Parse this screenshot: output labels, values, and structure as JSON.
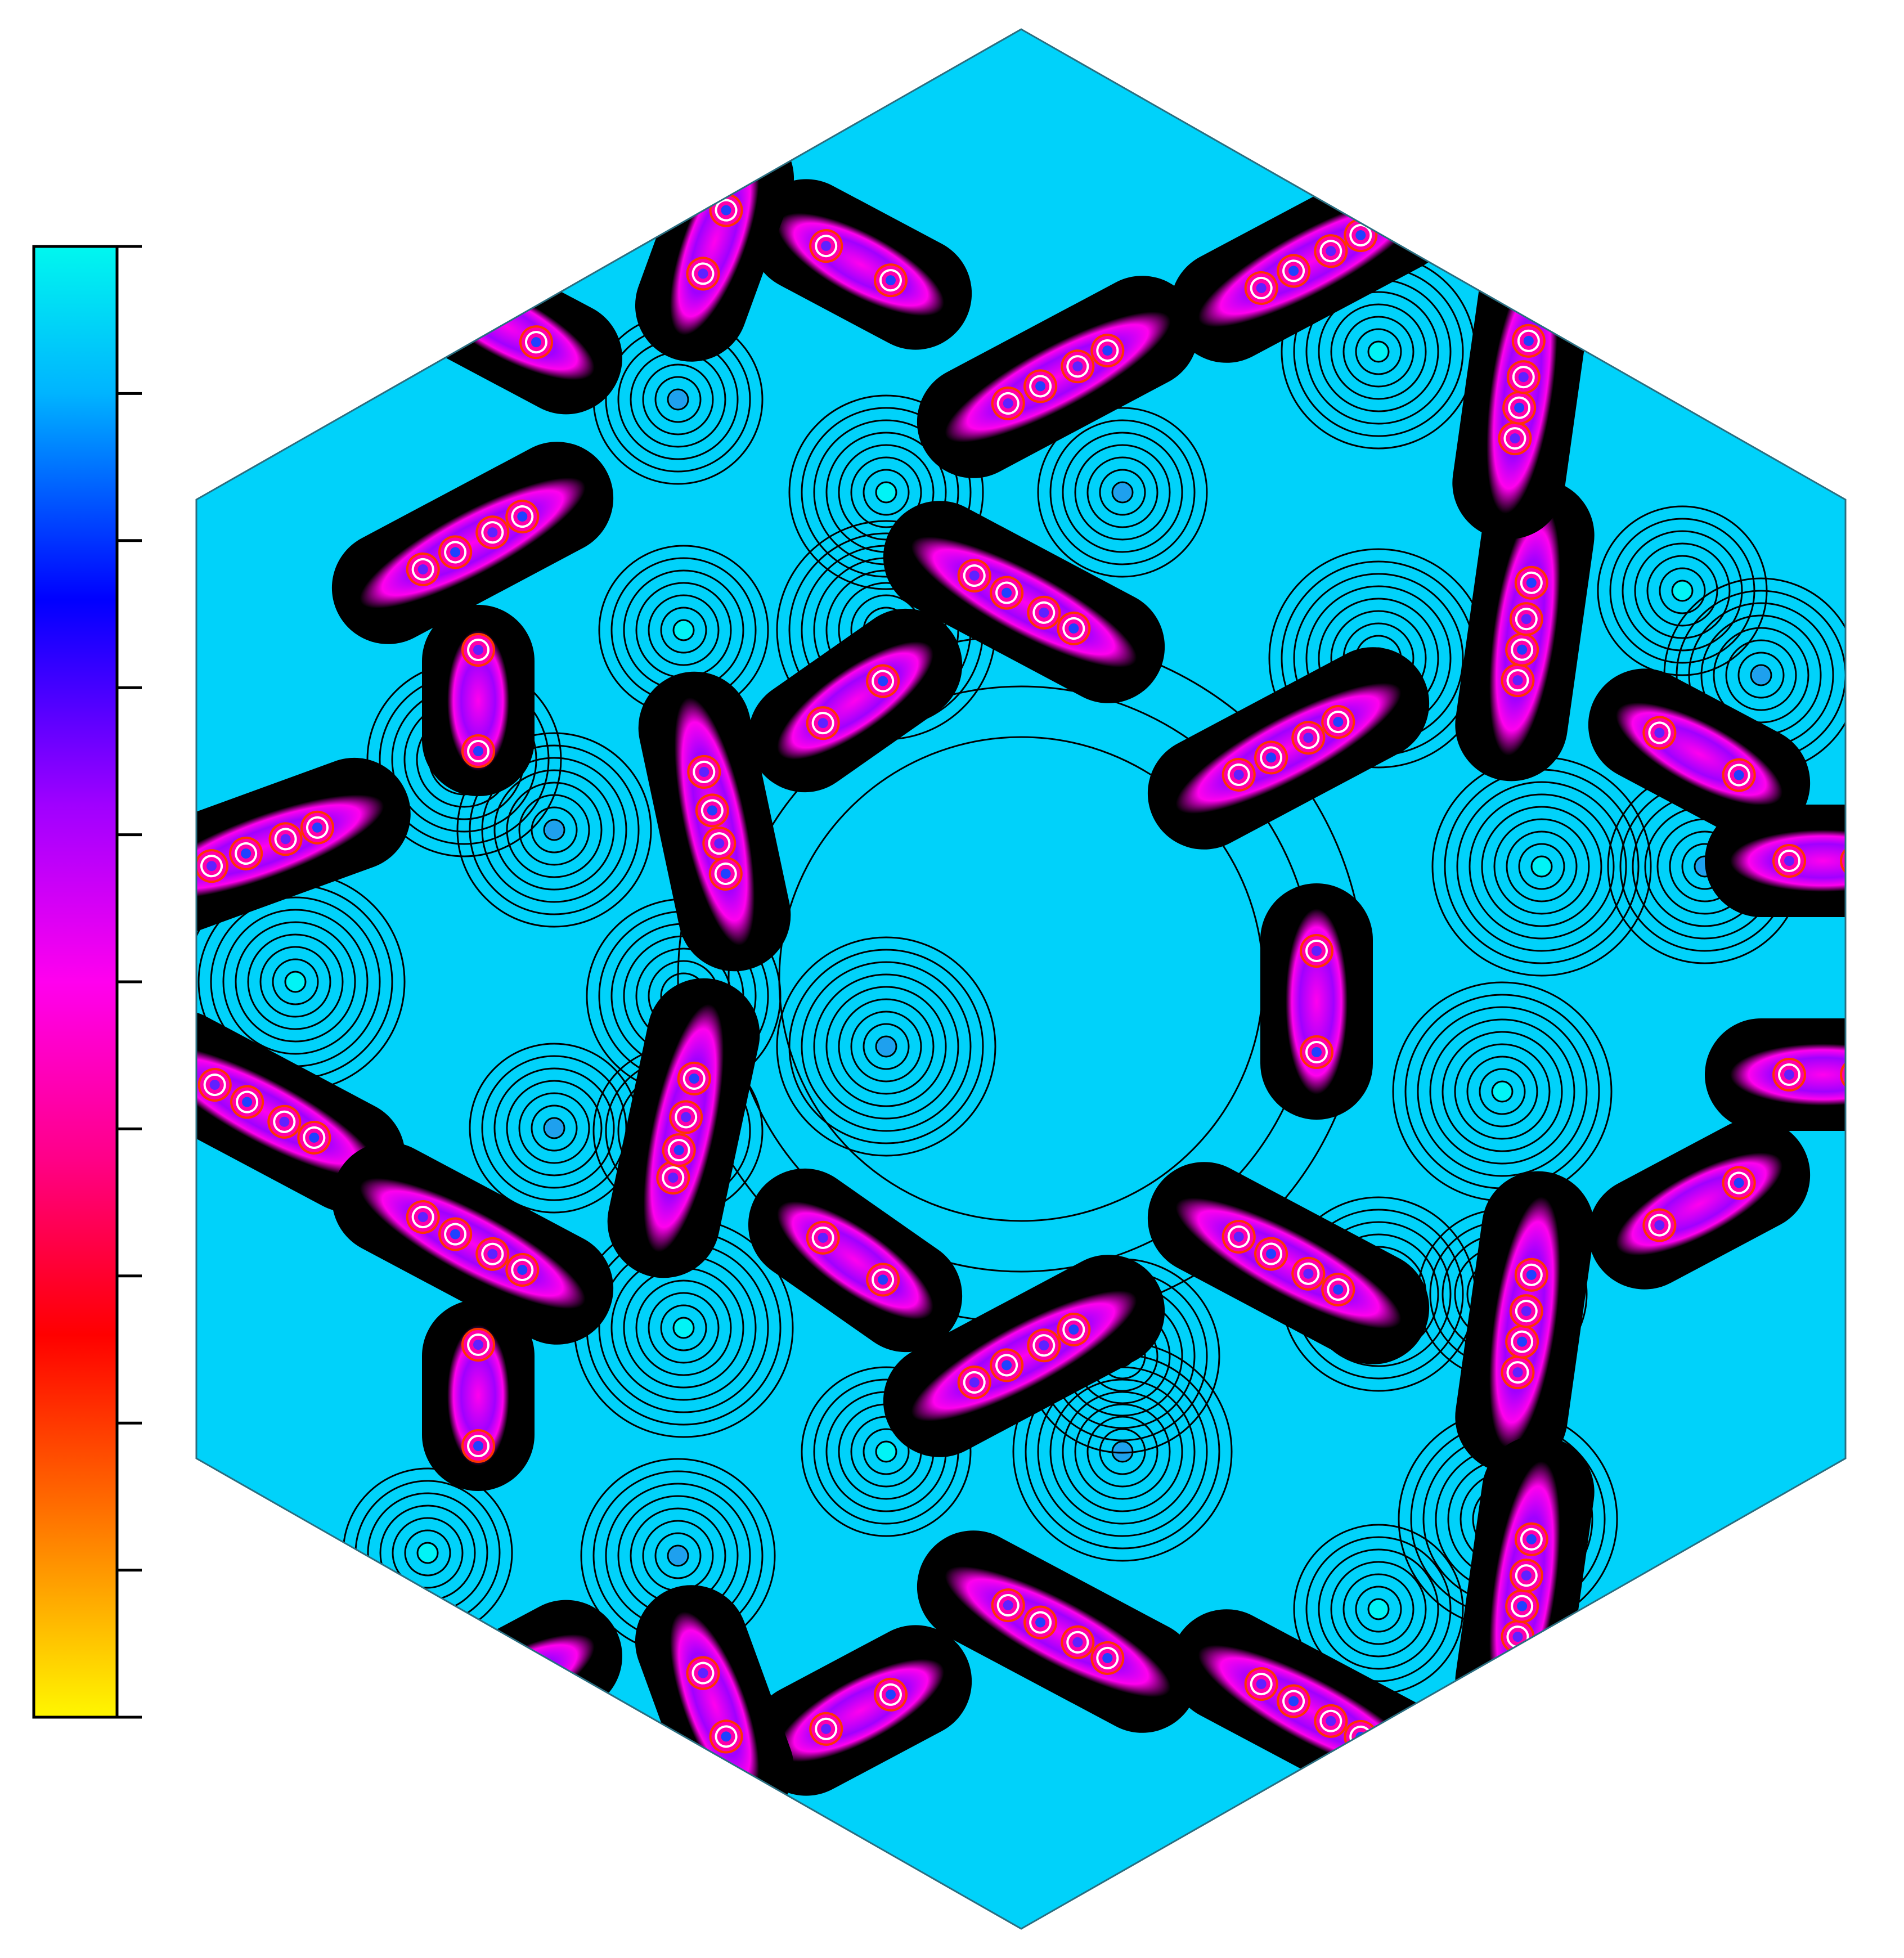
{
  "figure": {
    "kind": "contour-density-map",
    "shape": "hexagon",
    "colors": {
      "background_field": "#00d2fa",
      "contour_line": "#000000",
      "hexagon_border": "#2a6e80"
    }
  },
  "colorbar": {
    "tick_count": 11,
    "tick_labels": [],
    "gradient_stops": [
      {
        "offset": 0.0,
        "color": "#00f7ef"
      },
      {
        "offset": 0.1,
        "color": "#00b4ff"
      },
      {
        "offset": 0.24,
        "color": "#0000ff"
      },
      {
        "offset": 0.38,
        "color": "#a000ff"
      },
      {
        "offset": 0.5,
        "color": "#ff00ee"
      },
      {
        "offset": 0.62,
        "color": "#ff0088"
      },
      {
        "offset": 0.74,
        "color": "#ff0000"
      },
      {
        "offset": 0.86,
        "color": "#ff7000"
      },
      {
        "offset": 1.0,
        "color": "#fff700"
      }
    ]
  }
}
